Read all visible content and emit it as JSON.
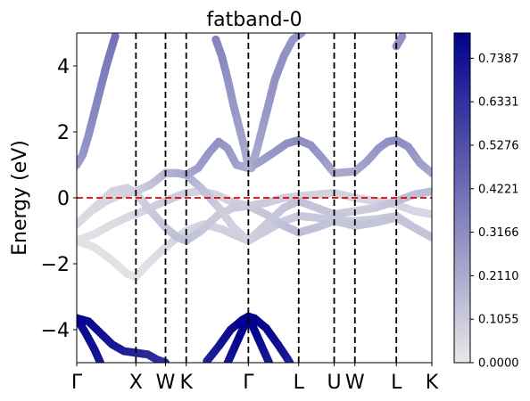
{
  "chart_data": {
    "type": "scatter",
    "title": "fatband-0",
    "xlabel": "",
    "ylabel": "Energy (eV)",
    "ylim": [
      -5,
      5
    ],
    "xlim": [
      0,
      6
    ],
    "y_ticks": [
      -4,
      -2,
      0,
      2,
      4
    ],
    "y_tick_labels": [
      "−4",
      "−2",
      "0",
      "2",
      "4"
    ],
    "k_points": [
      {
        "label": "Γ",
        "x": 0
      },
      {
        "label": "X",
        "x": 1.0
      },
      {
        "label": "W",
        "x": 1.5
      },
      {
        "label": "K",
        "x": 1.85
      },
      {
        "label": "Γ",
        "x": 2.9
      },
      {
        "label": "L",
        "x": 3.75
      },
      {
        "label": "U",
        "x": 4.35
      },
      {
        "label": "W",
        "x": 4.7
      },
      {
        "label": "L",
        "x": 5.4
      },
      {
        "label": "K",
        "x": 6.0
      }
    ],
    "fermi_level": 0,
    "colorbar": {
      "min": 0.0,
      "max": 0.8,
      "ticks": [
        "0.0000",
        "0.1055",
        "0.2110",
        "0.3166",
        "0.4221",
        "0.5276",
        "0.6331",
        "0.7387"
      ],
      "tick_values": [
        0.0,
        0.1055,
        0.211,
        0.3166,
        0.4221,
        0.5276,
        0.6331,
        0.7387
      ],
      "color_low": "#e8e8e8",
      "color_high": "#00008b"
    },
    "series": [
      {
        "points": [
          [
            0,
            -1.3
          ],
          [
            0.3,
            -1.1
          ],
          [
            0.6,
            -0.8
          ],
          [
            0.9,
            -0.55
          ],
          [
            1.0,
            -0.5
          ],
          [
            1.25,
            -0.3
          ],
          [
            1.5,
            -0.1
          ],
          [
            1.7,
            0.05
          ],
          [
            1.85,
            0.15
          ],
          [
            2.1,
            0.2
          ],
          [
            2.35,
            0.1
          ],
          [
            2.6,
            -0.1
          ],
          [
            2.9,
            -0.25
          ],
          [
            3.2,
            -0.15
          ],
          [
            3.5,
            0.0
          ],
          [
            3.75,
            0.05
          ],
          [
            4.05,
            0.1
          ],
          [
            4.35,
            0.15
          ],
          [
            4.7,
            0.0
          ],
          [
            5.05,
            -0.1
          ],
          [
            5.4,
            -0.2
          ],
          [
            5.7,
            -0.4
          ],
          [
            6.0,
            -0.5
          ]
        ],
        "weights": [
          0.02,
          0.03,
          0.04,
          0.05,
          0.06,
          0.08,
          0.1,
          0.1,
          0.08,
          0.07,
          0.07,
          0.08,
          0.1,
          0.1,
          0.09,
          0.08,
          0.08,
          0.08,
          0.07,
          0.07,
          0.07,
          0.06,
          0.05
        ]
      },
      {
        "points": [
          [
            0,
            -1.3
          ],
          [
            0.3,
            -1.5
          ],
          [
            0.6,
            -1.9
          ],
          [
            0.85,
            -2.3
          ],
          [
            1.0,
            -2.4
          ],
          [
            1.2,
            -2.0
          ],
          [
            1.5,
            -1.5
          ],
          [
            1.7,
            -1.2
          ],
          [
            1.85,
            -1.0
          ],
          [
            2.15,
            -0.8
          ],
          [
            2.45,
            -0.95
          ],
          [
            2.7,
            -1.15
          ],
          [
            2.9,
            -1.3
          ],
          [
            3.2,
            -1.0
          ],
          [
            3.5,
            -0.7
          ],
          [
            3.75,
            -0.55
          ],
          [
            4.05,
            -0.6
          ],
          [
            4.35,
            -0.7
          ],
          [
            4.7,
            -0.7
          ],
          [
            5.05,
            -0.65
          ],
          [
            5.4,
            -0.55
          ],
          [
            5.7,
            -0.9
          ],
          [
            6.0,
            -1.2
          ]
        ],
        "weights": [
          0.02,
          0.02,
          0.02,
          0.02,
          0.02,
          0.03,
          0.05,
          0.06,
          0.06,
          0.07,
          0.08,
          0.09,
          0.1,
          0.1,
          0.1,
          0.11,
          0.11,
          0.1,
          0.1,
          0.1,
          0.11,
          0.1,
          0.1
        ]
      },
      {
        "points": [
          [
            0,
            -0.8
          ],
          [
            0.25,
            -0.4
          ],
          [
            0.5,
            -0.1
          ],
          [
            0.75,
            0.1
          ],
          [
            1.0,
            0.2
          ],
          [
            1.25,
            0.4
          ],
          [
            1.5,
            0.75
          ],
          [
            1.7,
            0.75
          ],
          [
            1.85,
            0.7
          ],
          [
            2.1,
            0.3
          ],
          [
            2.4,
            -0.3
          ],
          [
            2.65,
            -0.9
          ],
          [
            2.9,
            -1.3
          ],
          [
            3.2,
            -0.8
          ],
          [
            3.5,
            -0.3
          ],
          [
            3.75,
            -0.1
          ],
          [
            4.05,
            -0.3
          ],
          [
            4.35,
            -0.5
          ],
          [
            4.7,
            -0.4
          ],
          [
            5.05,
            -0.3
          ],
          [
            5.4,
            -0.1
          ],
          [
            5.7,
            0.1
          ],
          [
            6.0,
            0.2
          ]
        ],
        "weights": [
          0.05,
          0.05,
          0.06,
          0.07,
          0.08,
          0.12,
          0.18,
          0.2,
          0.2,
          0.15,
          0.1,
          0.08,
          0.08,
          0.1,
          0.12,
          0.14,
          0.12,
          0.12,
          0.1,
          0.1,
          0.14,
          0.15,
          0.15
        ]
      },
      {
        "points": [
          [
            0,
            -0.8
          ],
          [
            0.3,
            -0.3
          ],
          [
            0.6,
            0.2
          ],
          [
            0.85,
            0.3
          ],
          [
            1.0,
            0.15
          ],
          [
            1.25,
            -0.4
          ],
          [
            1.5,
            -0.9
          ],
          [
            1.7,
            -1.2
          ],
          [
            1.85,
            -1.3
          ],
          [
            2.1,
            -1.0
          ],
          [
            2.4,
            -0.5
          ],
          [
            2.65,
            -0.3
          ],
          [
            2.9,
            -0.25
          ],
          [
            3.2,
            -0.5
          ],
          [
            3.5,
            -0.85
          ],
          [
            3.75,
            -1.05
          ],
          [
            4.05,
            -0.9
          ],
          [
            4.35,
            -0.7
          ],
          [
            4.7,
            -0.85
          ],
          [
            5.05,
            -0.75
          ],
          [
            5.4,
            -0.6
          ],
          [
            5.7,
            -0.9
          ],
          [
            6.0,
            -1.2
          ]
        ],
        "weights": [
          0.06,
          0.06,
          0.07,
          0.08,
          0.08,
          0.1,
          0.12,
          0.14,
          0.14,
          0.12,
          0.1,
          0.1,
          0.1,
          0.12,
          0.14,
          0.15,
          0.14,
          0.12,
          0.12,
          0.12,
          0.13,
          0.12,
          0.12
        ]
      },
      {
        "points": [
          [
            1.5,
            0.75
          ],
          [
            1.7,
            0.75
          ],
          [
            1.85,
            0.7
          ],
          [
            2.05,
            0.9
          ],
          [
            2.25,
            1.4
          ],
          [
            2.4,
            1.7
          ],
          [
            2.55,
            1.5
          ],
          [
            2.7,
            1.0
          ],
          [
            2.9,
            0.9
          ],
          [
            3.1,
            1.1
          ],
          [
            3.35,
            1.4
          ],
          [
            3.55,
            1.65
          ],
          [
            3.75,
            1.75
          ],
          [
            3.95,
            1.6
          ],
          [
            4.15,
            1.2
          ],
          [
            4.35,
            0.75
          ],
          [
            4.7,
            0.8
          ],
          [
            4.9,
            1.1
          ],
          [
            5.1,
            1.5
          ],
          [
            5.25,
            1.7
          ],
          [
            5.4,
            1.75
          ],
          [
            5.6,
            1.55
          ],
          [
            5.8,
            1.05
          ],
          [
            6.0,
            0.75
          ]
        ],
        "weights": [
          0.18,
          0.2,
          0.22,
          0.25,
          0.28,
          0.3,
          0.28,
          0.25,
          0.22,
          0.25,
          0.28,
          0.3,
          0.32,
          0.3,
          0.28,
          0.22,
          0.22,
          0.25,
          0.28,
          0.3,
          0.32,
          0.3,
          0.26,
          0.22
        ]
      },
      {
        "points": [
          [
            0.0,
            1.0
          ],
          [
            0.1,
            1.3
          ],
          [
            0.2,
            1.9
          ],
          [
            0.3,
            2.6
          ],
          [
            0.4,
            3.3
          ],
          [
            0.5,
            4.0
          ],
          [
            0.6,
            4.6
          ],
          [
            0.65,
            4.9
          ]
        ],
        "weights": [
          0.25,
          0.28,
          0.3,
          0.33,
          0.35,
          0.37,
          0.39,
          0.4
        ]
      },
      {
        "points": [
          [
            2.95,
            0.9
          ],
          [
            3.05,
            1.5
          ],
          [
            3.15,
            2.2
          ],
          [
            3.25,
            2.9
          ],
          [
            3.35,
            3.6
          ],
          [
            3.5,
            4.3
          ],
          [
            3.65,
            4.8
          ],
          [
            3.8,
            5.0
          ]
        ],
        "weights": [
          0.2,
          0.23,
          0.26,
          0.28,
          0.3,
          0.3,
          0.29,
          0.28
        ]
      },
      {
        "points": [
          [
            2.35,
            4.8
          ],
          [
            2.45,
            4.3
          ],
          [
            2.55,
            3.6
          ],
          [
            2.65,
            2.8
          ],
          [
            2.75,
            2.1
          ],
          [
            2.85,
            1.4
          ],
          [
            2.9,
            0.9
          ]
        ],
        "weights": [
          0.35,
          0.33,
          0.3,
          0.28,
          0.26,
          0.23,
          0.2
        ]
      },
      {
        "points": [
          [
            5.4,
            4.6
          ],
          [
            5.5,
            4.9
          ]
        ],
        "weights": [
          0.3,
          0.3
        ]
      },
      {
        "points": [
          [
            0,
            -3.65
          ],
          [
            0.2,
            -3.75
          ],
          [
            0.4,
            -4.1
          ],
          [
            0.6,
            -4.45
          ],
          [
            0.8,
            -4.65
          ],
          [
            1.0,
            -4.7
          ],
          [
            1.2,
            -4.75
          ],
          [
            1.35,
            -4.9
          ],
          [
            1.5,
            -5.0
          ]
        ],
        "weights": [
          0.8,
          0.78,
          0.75,
          0.72,
          0.7,
          0.68,
          0.66,
          0.65,
          0.64
        ]
      },
      {
        "points": [
          [
            2.2,
            -4.95
          ],
          [
            2.4,
            -4.5
          ],
          [
            2.6,
            -4.0
          ],
          [
            2.8,
            -3.7
          ],
          [
            2.9,
            -3.6
          ],
          [
            3.0,
            -3.65
          ],
          [
            3.2,
            -3.95
          ],
          [
            3.4,
            -4.45
          ],
          [
            3.55,
            -4.85
          ],
          [
            3.6,
            -5.0
          ]
        ],
        "weights": [
          0.68,
          0.72,
          0.76,
          0.79,
          0.8,
          0.8,
          0.78,
          0.75,
          0.72,
          0.7
        ]
      },
      {
        "points": [
          [
            0,
            -3.65
          ],
          [
            0.15,
            -4.1
          ],
          [
            0.3,
            -4.6
          ],
          [
            0.4,
            -5.0
          ]
        ],
        "weights": [
          0.78,
          0.76,
          0.74,
          0.72
        ]
      },
      {
        "points": [
          [
            2.55,
            -5.0
          ],
          [
            2.65,
            -4.6
          ],
          [
            2.75,
            -4.2
          ],
          [
            2.85,
            -3.8
          ],
          [
            2.9,
            -3.6
          ],
          [
            2.95,
            -3.8
          ],
          [
            3.05,
            -4.2
          ],
          [
            3.15,
            -4.6
          ],
          [
            3.25,
            -5.0
          ]
        ],
        "weights": [
          0.72,
          0.75,
          0.78,
          0.8,
          0.8,
          0.8,
          0.78,
          0.75,
          0.72
        ]
      }
    ]
  }
}
